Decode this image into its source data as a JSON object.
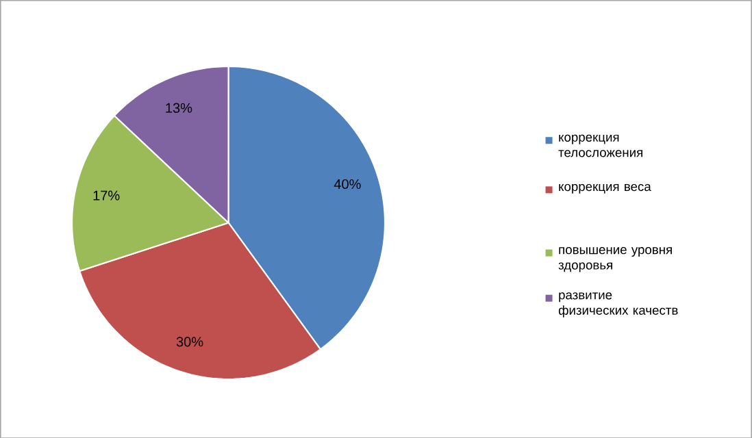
{
  "chart_data": {
    "type": "pie",
    "categories": [
      "коррекция телосложения",
      "коррекция веса",
      "повышение уровня здоровья",
      "развитие физических качеств"
    ],
    "values": [
      40,
      30,
      17,
      13
    ],
    "value_labels": [
      "40%",
      "30%",
      "17%",
      "13%"
    ],
    "colors": [
      "#4f81bd",
      "#c0504d",
      "#9bbb59",
      "#8064a2"
    ],
    "legend": "right"
  }
}
